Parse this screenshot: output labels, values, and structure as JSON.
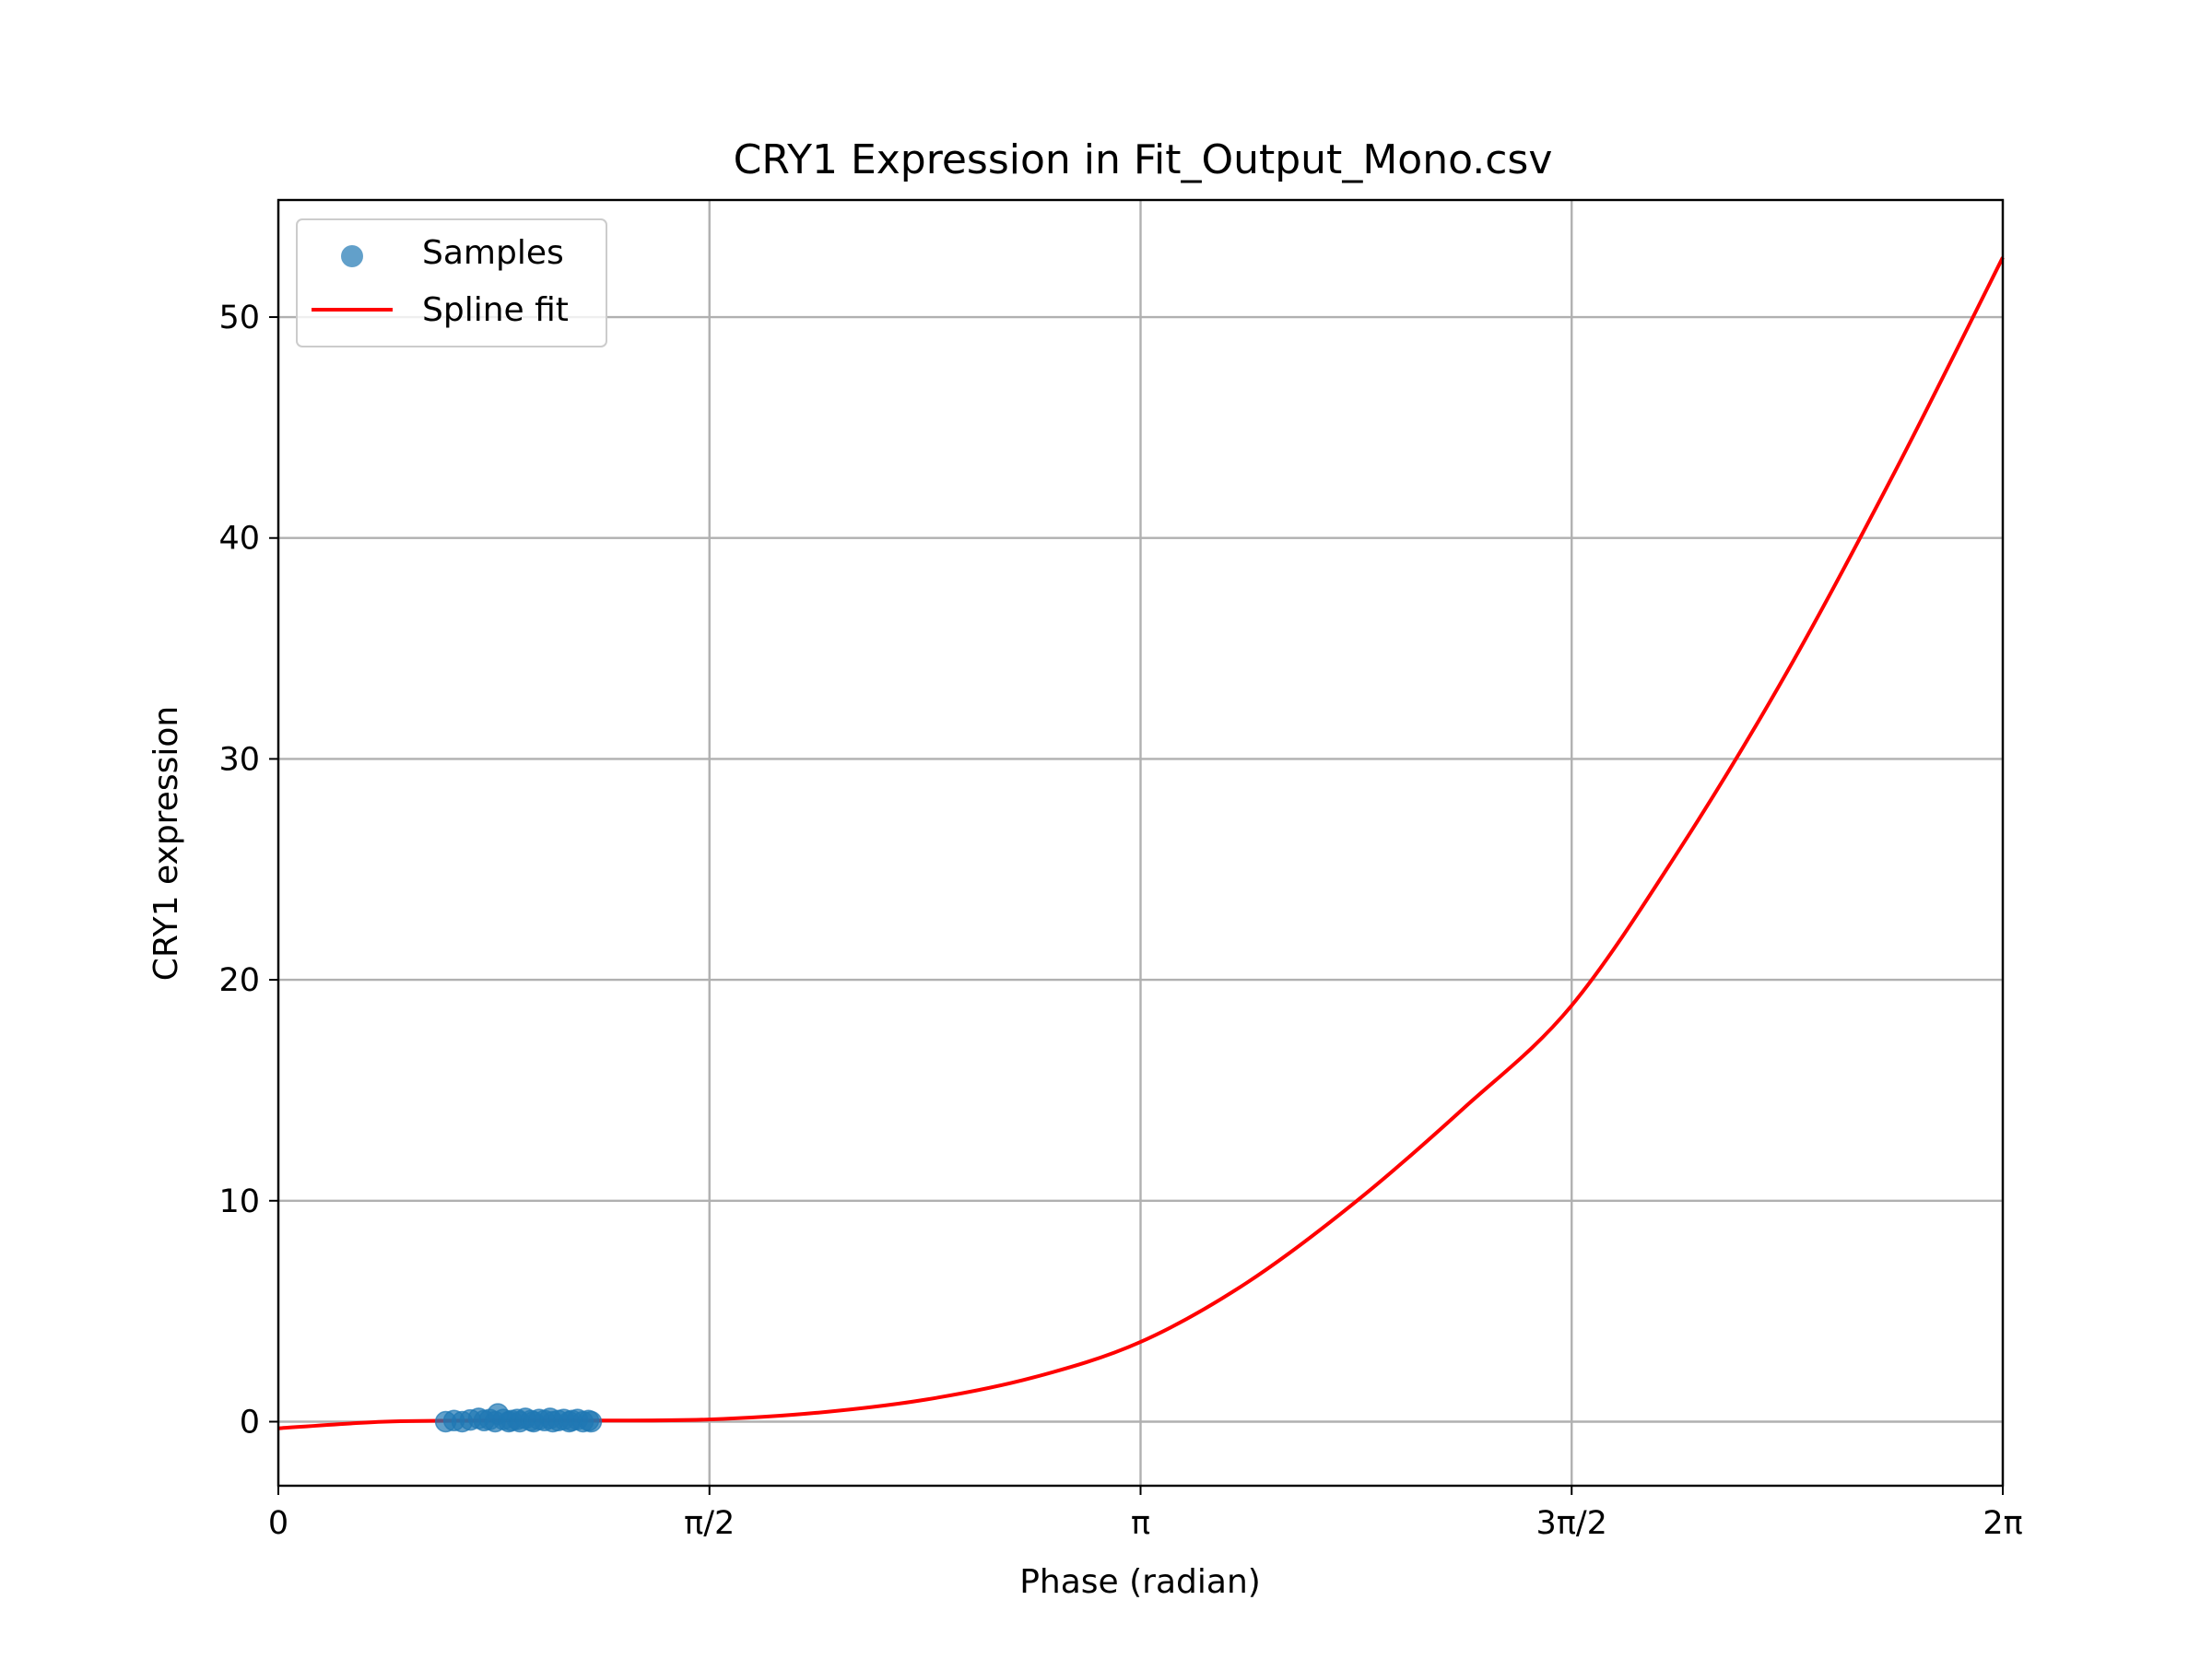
{
  "chart_data": {
    "type": "scatter",
    "title": "CRY1 Expression in Fit_Output_Mono.csv",
    "xlabel": "Phase (radian)",
    "ylabel": "CRY1 expression",
    "xlim": [
      0,
      6.283185
    ],
    "ylim": [
      -2.9,
      55.3
    ],
    "grid": true,
    "legend_position": "upper-left",
    "x_ticks": [
      {
        "value": 0,
        "label": "0"
      },
      {
        "value": 1.570796,
        "label": "π/2"
      },
      {
        "value": 3.141593,
        "label": "π"
      },
      {
        "value": 4.712389,
        "label": "3π/2"
      },
      {
        "value": 6.283185,
        "label": "2π"
      }
    ],
    "y_ticks": [
      {
        "value": 0,
        "label": "0"
      },
      {
        "value": 10,
        "label": "10"
      },
      {
        "value": 20,
        "label": "20"
      },
      {
        "value": 30,
        "label": "30"
      },
      {
        "value": 40,
        "label": "40"
      },
      {
        "value": 50,
        "label": "50"
      }
    ],
    "series": [
      {
        "name": "Samples",
        "kind": "scatter",
        "color": "#1f77b4",
        "opacity": 0.7,
        "x": [
          0.61,
          0.64,
          0.67,
          0.7,
          0.73,
          0.75,
          0.77,
          0.79,
          0.8,
          0.82,
          0.84,
          0.85,
          0.87,
          0.88,
          0.9,
          0.92,
          0.93,
          0.95,
          0.97,
          0.99,
          1.0,
          1.02,
          1.04,
          1.06,
          1.07,
          1.09,
          1.11,
          1.13,
          1.14
        ],
        "y": [
          0.0,
          0.05,
          0.0,
          0.08,
          0.15,
          0.05,
          0.1,
          0.0,
          0.35,
          0.1,
          0.0,
          0.05,
          0.1,
          0.0,
          0.15,
          0.05,
          0.0,
          0.1,
          0.05,
          0.15,
          0.0,
          0.05,
          0.1,
          0.0,
          0.05,
          0.1,
          0.0,
          0.05,
          0.0
        ]
      },
      {
        "name": "Spline fit",
        "kind": "line",
        "color": "#ff0000",
        "x": [
          0,
          0.39,
          0.79,
          1.18,
          1.57,
          1.96,
          2.36,
          2.75,
          3.14,
          3.53,
          3.93,
          4.32,
          4.71,
          5.11,
          5.5,
          5.89,
          6.283185
        ],
        "y": [
          -0.3,
          0.0,
          0.05,
          0.05,
          0.1,
          0.4,
          1.0,
          2.0,
          3.6,
          6.3,
          10.0,
          14.2,
          18.8,
          26.0,
          34.0,
          43.0,
          52.7
        ]
      }
    ]
  }
}
